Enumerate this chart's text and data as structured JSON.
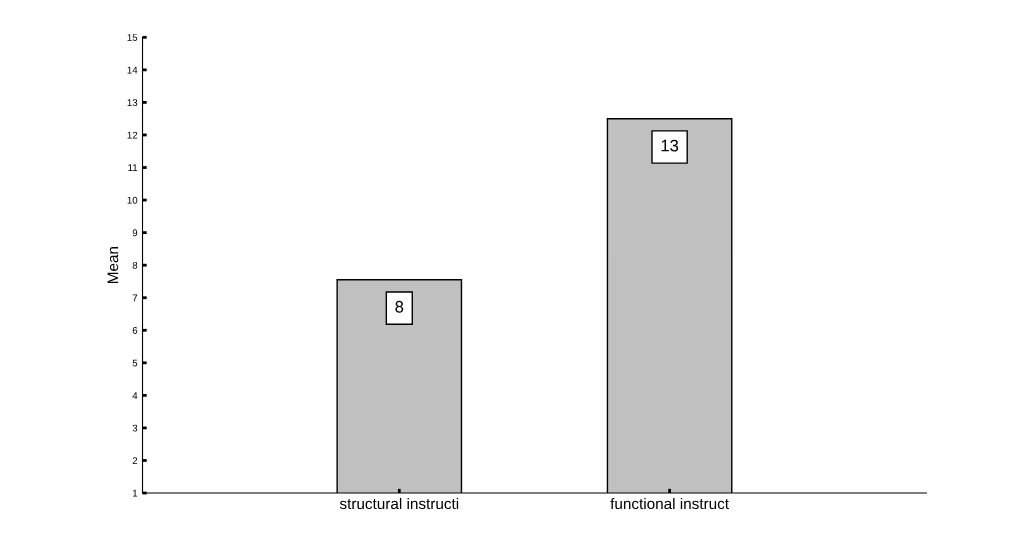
{
  "chart_data": {
    "type": "bar",
    "ylabel": "Mean",
    "categories": [
      "structural instructi",
      "functional instruct"
    ],
    "values": [
      7.55,
      12.5
    ],
    "value_labels": [
      "8",
      "13"
    ],
    "color": "#c0c0c0",
    "ylim": [
      1,
      15
    ],
    "yticks": [
      1,
      2,
      3,
      4,
      5,
      6,
      7,
      8,
      9,
      10,
      11,
      12,
      13,
      14,
      15
    ],
    "grid": false
  }
}
